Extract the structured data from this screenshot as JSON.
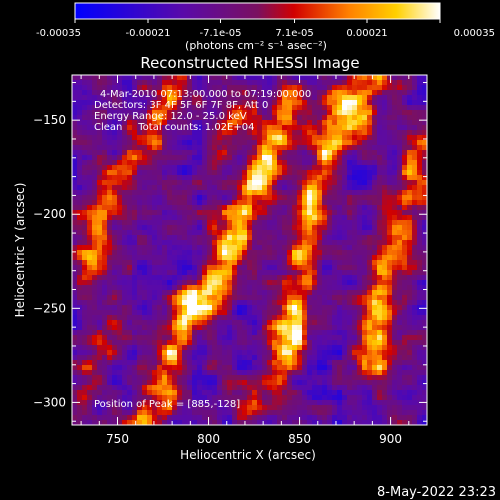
{
  "colorbar": {
    "tick_labels": [
      "-0.00035",
      "-0.00021",
      "-7.1e-05",
      "7.1e-05",
      "0.00021",
      "0.00035"
    ],
    "ticks": [
      -0.00035,
      -0.00021,
      -7.1e-05,
      7.1e-05,
      0.00021,
      0.00035
    ],
    "range": [
      -0.00035,
      0.00035
    ],
    "unit_label": "(photons cm⁻² s⁻¹ asec⁻²)",
    "colors": [
      "#0000ff",
      "#6a0aa0",
      "#d10000",
      "#ff8000",
      "#ffd000",
      "#ffffff"
    ]
  },
  "chart_data": {
    "type": "heatmap",
    "title": "Reconstructed RHESSI Image",
    "xlabel": "Heliocentric X (arcsec)",
    "ylabel": "Heliocentric Y (arcsec)",
    "xlim": [
      725,
      920
    ],
    "ylim": [
      -312,
      -126
    ],
    "x_ticks": [
      750,
      800,
      850,
      900
    ],
    "x_tick_labels": [
      "750",
      "800",
      "850",
      "900"
    ],
    "y_ticks": [
      -300,
      -250,
      -200,
      -150
    ],
    "y_tick_labels": [
      "−300",
      "−250",
      "−200",
      "−150"
    ],
    "info_lines": [
      "4-Mar-2010 07:13:00.000 to 07:19:00.000",
      "Detectors: 3F 4F 5F 6F 7F 8F, Att 0",
      "Energy Range: 12.0 - 25.0 keV",
      "Clean     Total counts: 1.02E+04"
    ],
    "peak_label": "Position of Peak = [885,-128]",
    "bright_features": [
      {
        "x": [
          845,
          850,
          860,
          872
        ],
        "y": [
          -270,
          -220,
          -185,
          -140
        ],
        "peak": 0.00033
      },
      {
        "x": [
          795,
          810,
          830,
          845
        ],
        "y": [
          -250,
          -220,
          -175,
          -140
        ],
        "peak": 0.00033
      },
      {
        "x": [
          766,
          778,
          790
        ],
        "y": [
          -310,
          -280,
          -250
        ],
        "peak": 0.00031
      },
      {
        "x": [
          890,
          893,
          898
        ],
        "y": [
          -280,
          -255,
          -230
        ],
        "peak": 0.00033
      },
      {
        "x": [
          880,
          885,
          890
        ],
        "y": [
          -150,
          -138,
          -128
        ],
        "peak": 0.00033
      },
      {
        "x": [
          735,
          740,
          745
        ],
        "y": [
          -230,
          -205,
          -180
        ],
        "peak": 0.00021
      },
      {
        "x": [
          760,
          770,
          780
        ],
        "y": [
          -170,
          -150,
          -135
        ],
        "peak": 0.00025
      },
      {
        "x": [
          728,
          740,
          750
        ],
        "y": [
          -300,
          -275,
          -255
        ],
        "peak": 0.00015
      },
      {
        "x": [
          823,
          835,
          843
        ],
        "y": [
          -300,
          -285,
          -265
        ],
        "peak": 0.00019
      },
      {
        "x": [
          905,
          910,
          915
        ],
        "y": [
          -210,
          -185,
          -160
        ],
        "peak": 0.00021
      },
      {
        "x": [
          808,
          815,
          820
        ],
        "y": [
          -160,
          -150,
          -140
        ],
        "peak": 0.0002
      }
    ]
  },
  "footer": {
    "date_stamp": "8-May-2022 23:23"
  }
}
